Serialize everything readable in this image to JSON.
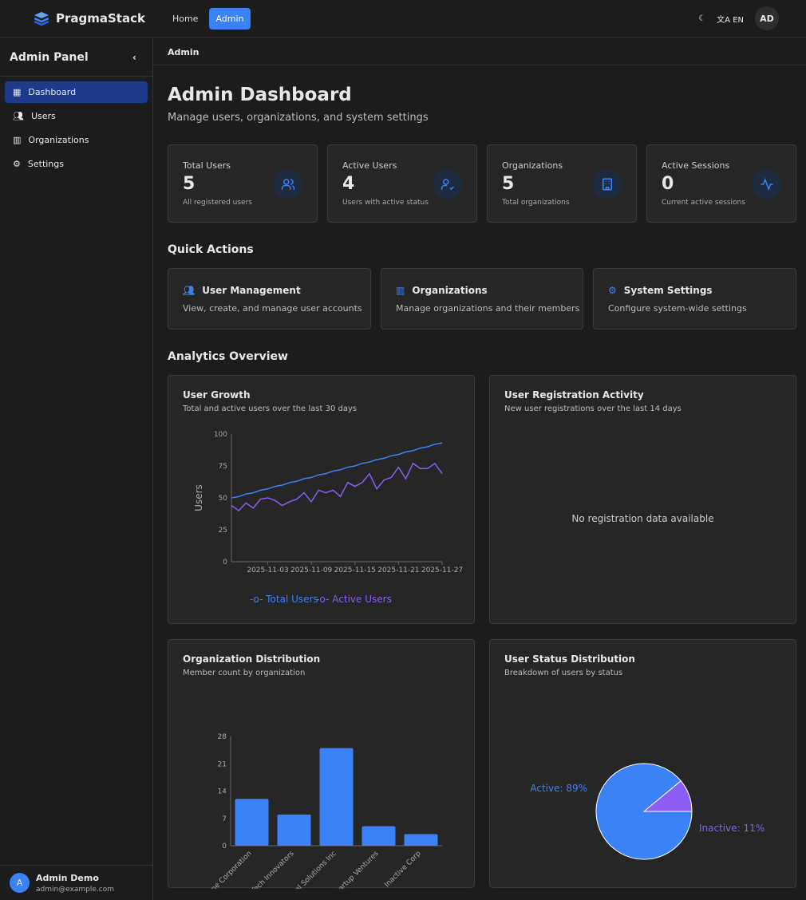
{
  "header": {
    "brand": "PragmaStack",
    "nav": [
      "Home",
      "Admin"
    ],
    "lang": "EN",
    "avatar": "AD"
  },
  "sidebar": {
    "title": "Admin Panel",
    "items": [
      {
        "label": "Dashboard",
        "icon": "dashboard-icon"
      },
      {
        "label": "Users",
        "icon": "users-icon"
      },
      {
        "label": "Organizations",
        "icon": "building-icon"
      },
      {
        "label": "Settings",
        "icon": "gear-icon"
      }
    ],
    "user": {
      "initial": "A",
      "name": "Admin Demo",
      "email": "admin@example.com"
    }
  },
  "breadcrumb": "Admin",
  "page": {
    "title": "Admin Dashboard",
    "subtitle": "Manage users, organizations, and system settings"
  },
  "stats": [
    {
      "label": "Total Users",
      "value": "5",
      "desc": "All registered users"
    },
    {
      "label": "Active Users",
      "value": "4",
      "desc": "Users with active status"
    },
    {
      "label": "Organizations",
      "value": "5",
      "desc": "Total organizations"
    },
    {
      "label": "Active Sessions",
      "value": "0",
      "desc": "Current active sessions"
    }
  ],
  "quick_actions": {
    "title": "Quick Actions",
    "items": [
      {
        "title": "User Management",
        "desc": "View, create, and manage user accounts"
      },
      {
        "title": "Organizations",
        "desc": "Manage organizations and their members"
      },
      {
        "title": "System Settings",
        "desc": "Configure system-wide settings"
      }
    ]
  },
  "analytics": {
    "title": "Analytics Overview",
    "growth": {
      "title": "User Growth",
      "subtitle": "Total and active users over the last 30 days"
    },
    "registration": {
      "title": "User Registration Activity",
      "subtitle": "New user registrations over the last 14 days",
      "empty": "No registration data available"
    },
    "orgs": {
      "title": "Organization Distribution",
      "subtitle": "Member count by organization"
    },
    "status": {
      "title": "User Status Distribution",
      "subtitle": "Breakdown of users by status"
    }
  },
  "colors": {
    "accent": "#3b82f6",
    "purple": "#8b5cf6"
  },
  "chart_data": [
    {
      "type": "line",
      "ylabel": "Users",
      "ylim": [
        0,
        100
      ],
      "yticks": [
        0,
        25,
        50,
        75,
        100
      ],
      "xticks": [
        "2025-11-03",
        "2025-11-09",
        "2025-11-15",
        "2025-11-21",
        "2025-11-27"
      ],
      "x_start": "2025-10-29",
      "x_end": "2025-11-27",
      "series": [
        {
          "name": "Total Users",
          "color": "#3b82f6",
          "values": [
            50,
            51,
            53,
            54,
            56,
            57,
            59,
            60,
            62,
            63,
            65,
            66,
            68,
            69,
            71,
            72,
            74,
            75,
            77,
            78,
            80,
            81,
            83,
            84,
            86,
            87,
            89,
            90,
            92,
            93
          ]
        },
        {
          "name": "Active Users",
          "color": "#8b5cf6",
          "values": [
            44,
            40,
            46,
            42,
            49,
            50,
            48,
            44,
            47,
            49,
            54,
            47,
            56,
            54,
            56,
            51,
            62,
            59,
            62,
            69,
            57,
            64,
            66,
            74,
            65,
            77,
            73,
            73,
            77,
            69
          ]
        }
      ],
      "legend": "bottom"
    },
    {
      "type": "bar",
      "categories": [
        "Acme Corporation",
        "Tech Innovators",
        "Global Solutions Inc",
        "Startup Ventures",
        "Inactive Corp"
      ],
      "values": [
        12,
        8,
        25,
        5,
        3
      ],
      "ylim": [
        0,
        28
      ],
      "yticks": [
        0,
        7,
        14,
        21,
        28
      ]
    },
    {
      "type": "pie",
      "slices": [
        {
          "name": "Active",
          "value": 89,
          "label": "Active: 89%",
          "color": "#3b82f6"
        },
        {
          "name": "Inactive",
          "value": 11,
          "label": "Inactive: 11%",
          "color": "#8b5cf6"
        }
      ],
      "legend": "bottom"
    }
  ]
}
